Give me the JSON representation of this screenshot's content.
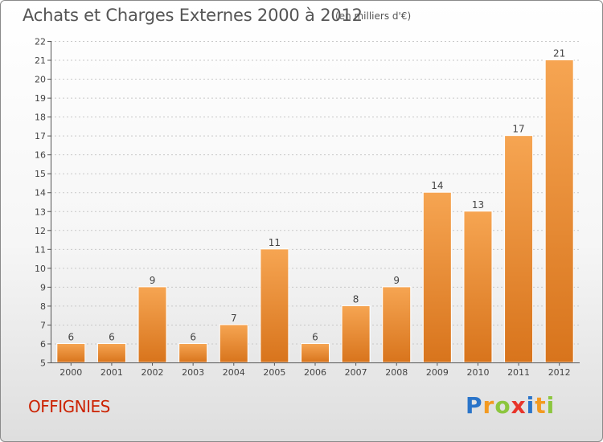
{
  "header": {
    "title": "Achats et Charges Externes 2000 à 2012",
    "subtitle": "(en milliers d'€)"
  },
  "footer": {
    "commune": "OFFIGNIES",
    "logo": "Proxiti"
  },
  "colors": {
    "bar_top": "#f6a552",
    "bar_bottom": "#d8741c",
    "commune": "#cc2200",
    "text": "#555555"
  },
  "chart_data": {
    "type": "bar",
    "categories": [
      "2000",
      "2001",
      "2002",
      "2003",
      "2004",
      "2005",
      "2006",
      "2007",
      "2008",
      "2009",
      "2010",
      "2011",
      "2012"
    ],
    "values": [
      6,
      6,
      9,
      6,
      7,
      11,
      6,
      8,
      9,
      14,
      13,
      17,
      21
    ],
    "ylim": [
      5,
      22
    ],
    "yticks": [
      5,
      6,
      7,
      8,
      9,
      10,
      11,
      12,
      13,
      14,
      15,
      16,
      17,
      18,
      19,
      20,
      21,
      22
    ],
    "grid": true
  }
}
